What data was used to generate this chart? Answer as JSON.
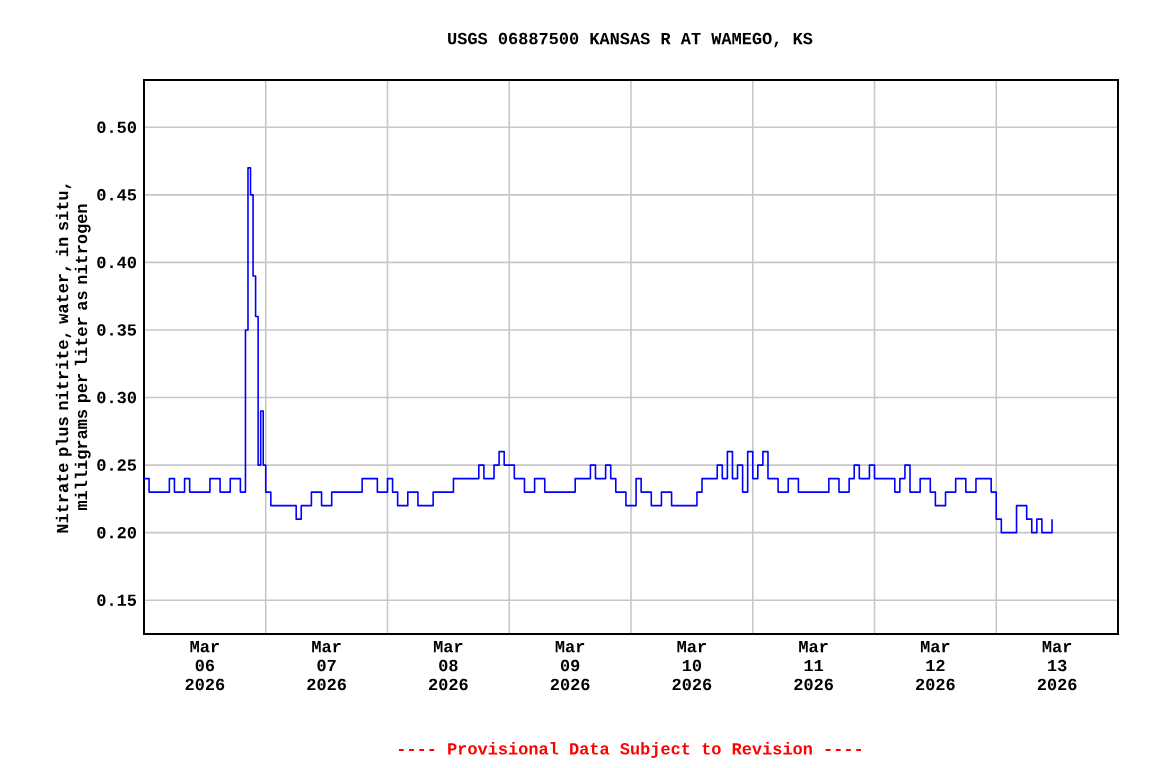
{
  "chart_data": {
    "type": "step",
    "title": "USGS 06887500 KANSAS R AT WAMEGO, KS",
    "ylabel": "Nitrate plus nitrite, water, in situ, milligrams per liter as nitrogen",
    "annotations": [
      "---- Provisional Data Subject to Revision ----"
    ],
    "grid": true,
    "color": "#0000ff",
    "xlim": [
      "2026-03-06",
      "2026-03-14"
    ],
    "xticks": [
      {
        "value": "2026-03-06T12:00",
        "label": "Mar 06 2026"
      },
      {
        "value": "2026-03-07T12:00",
        "label": "Mar 07 2026"
      },
      {
        "value": "2026-03-08T12:00",
        "label": "Mar 08 2026"
      },
      {
        "value": "2026-03-09T12:00",
        "label": "Mar 09 2026"
      },
      {
        "value": "2026-03-10T12:00",
        "label": "Mar 10 2026"
      },
      {
        "value": "2026-03-11T12:00",
        "label": "Mar 11 2026"
      },
      {
        "value": "2026-03-12T12:00",
        "label": "Mar 12 2026"
      },
      {
        "value": "2026-03-13T12:00",
        "label": "Mar 13 2026"
      },
      {
        "value": "2026-03-07",
        "label": null
      },
      {
        "value": "2026-03-08",
        "label": null
      },
      {
        "value": "2026-03-09",
        "label": null
      },
      {
        "value": "2026-03-10",
        "label": null
      },
      {
        "value": "2026-03-11",
        "label": null
      },
      {
        "value": "2026-03-12",
        "label": null
      },
      {
        "value": "2026-03-13",
        "label": null
      }
    ],
    "ylim": [
      0.125,
      0.535
    ],
    "yticks": [
      {
        "value": 0.15,
        "label": "0.15"
      },
      {
        "value": 0.2,
        "label": "0.20"
      },
      {
        "value": 0.25,
        "label": "0.25"
      },
      {
        "value": 0.3,
        "label": "0.30"
      },
      {
        "value": 0.35,
        "label": "0.35"
      },
      {
        "value": 0.4,
        "label": "0.40"
      },
      {
        "value": 0.45,
        "label": "0.45"
      },
      {
        "value": 0.5,
        "label": "0.50"
      }
    ],
    "x": [
      "2026-03-06T00:00",
      "2026-03-06T01:00",
      "2026-03-06T05:00",
      "2026-03-06T06:00",
      "2026-03-06T08:00",
      "2026-03-06T09:00",
      "2026-03-06T11:00",
      "2026-03-06T13:00",
      "2026-03-06T15:00",
      "2026-03-06T17:00",
      "2026-03-06T19:00",
      "2026-03-06T20:00",
      "2026-03-06T20:30",
      "2026-03-06T21:00",
      "2026-03-06T21:30",
      "2026-03-06T22:00",
      "2026-03-06T22:30",
      "2026-03-06T23:00",
      "2026-03-06T23:30",
      "2026-03-07T00:00",
      "2026-03-07T01:00",
      "2026-03-07T05:00",
      "2026-03-07T06:00",
      "2026-03-07T07:00",
      "2026-03-07T09:00",
      "2026-03-07T11:00",
      "2026-03-07T13:00",
      "2026-03-07T19:00",
      "2026-03-07T21:00",
      "2026-03-07T22:00",
      "2026-03-08T00:00",
      "2026-03-08T01:00",
      "2026-03-08T02:00",
      "2026-03-08T04:00",
      "2026-03-08T06:00",
      "2026-03-08T09:00",
      "2026-03-08T13:00",
      "2026-03-08T18:00",
      "2026-03-08T19:00",
      "2026-03-08T21:00",
      "2026-03-08T22:00",
      "2026-03-08T23:00",
      "2026-03-09T01:00",
      "2026-03-09T03:00",
      "2026-03-09T05:00",
      "2026-03-09T07:00",
      "2026-03-09T13:00",
      "2026-03-09T16:00",
      "2026-03-09T17:00",
      "2026-03-09T19:00",
      "2026-03-09T20:00",
      "2026-03-09T21:00",
      "2026-03-09T23:00",
      "2026-03-10T01:00",
      "2026-03-10T02:00",
      "2026-03-10T04:00",
      "2026-03-10T06:00",
      "2026-03-10T08:00",
      "2026-03-10T13:00",
      "2026-03-10T14:00",
      "2026-03-10T17:00",
      "2026-03-10T18:00",
      "2026-03-10T19:00",
      "2026-03-10T20:00",
      "2026-03-10T21:00",
      "2026-03-10T22:00",
      "2026-03-10T23:00",
      "2026-03-11T00:00",
      "2026-03-11T01:00",
      "2026-03-11T02:00",
      "2026-03-11T03:00",
      "2026-03-11T05:00",
      "2026-03-11T07:00",
      "2026-03-11T09:00",
      "2026-03-11T15:00",
      "2026-03-11T17:00",
      "2026-03-11T19:00",
      "2026-03-11T20:00",
      "2026-03-11T21:00",
      "2026-03-11T23:00",
      "2026-03-12T00:00",
      "2026-03-12T04:00",
      "2026-03-12T05:00",
      "2026-03-12T06:00",
      "2026-03-12T07:00",
      "2026-03-12T09:00",
      "2026-03-12T11:00",
      "2026-03-12T12:00",
      "2026-03-12T13:00",
      "2026-03-12T14:00",
      "2026-03-12T16:00",
      "2026-03-12T18:00",
      "2026-03-12T20:00",
      "2026-03-12T23:00",
      "2026-03-13T00:00",
      "2026-03-13T01:00",
      "2026-03-13T04:00",
      "2026-03-13T06:00",
      "2026-03-13T07:00",
      "2026-03-13T08:00",
      "2026-03-13T09:00",
      "2026-03-13T11:00"
    ],
    "values": [
      0.24,
      0.23,
      0.24,
      0.23,
      0.24,
      0.23,
      0.23,
      0.24,
      0.23,
      0.24,
      0.23,
      0.35,
      0.47,
      0.45,
      0.39,
      0.36,
      0.25,
      0.29,
      0.25,
      0.23,
      0.22,
      0.22,
      0.21,
      0.22,
      0.23,
      0.22,
      0.23,
      0.24,
      0.24,
      0.23,
      0.24,
      0.23,
      0.22,
      0.23,
      0.22,
      0.23,
      0.24,
      0.25,
      0.24,
      0.25,
      0.26,
      0.25,
      0.24,
      0.23,
      0.24,
      0.23,
      0.24,
      0.25,
      0.24,
      0.25,
      0.24,
      0.23,
      0.22,
      0.24,
      0.23,
      0.22,
      0.23,
      0.22,
      0.23,
      0.24,
      0.25,
      0.24,
      0.26,
      0.24,
      0.25,
      0.23,
      0.26,
      0.24,
      0.25,
      0.26,
      0.24,
      0.23,
      0.24,
      0.23,
      0.24,
      0.23,
      0.24,
      0.25,
      0.24,
      0.25,
      0.24,
      0.23,
      0.24,
      0.25,
      0.23,
      0.24,
      0.23,
      0.22,
      0.22,
      0.23,
      0.24,
      0.23,
      0.24,
      0.23,
      0.21,
      0.2,
      0.22,
      0.21,
      0.2,
      0.21,
      0.2,
      0.21
    ]
  }
}
